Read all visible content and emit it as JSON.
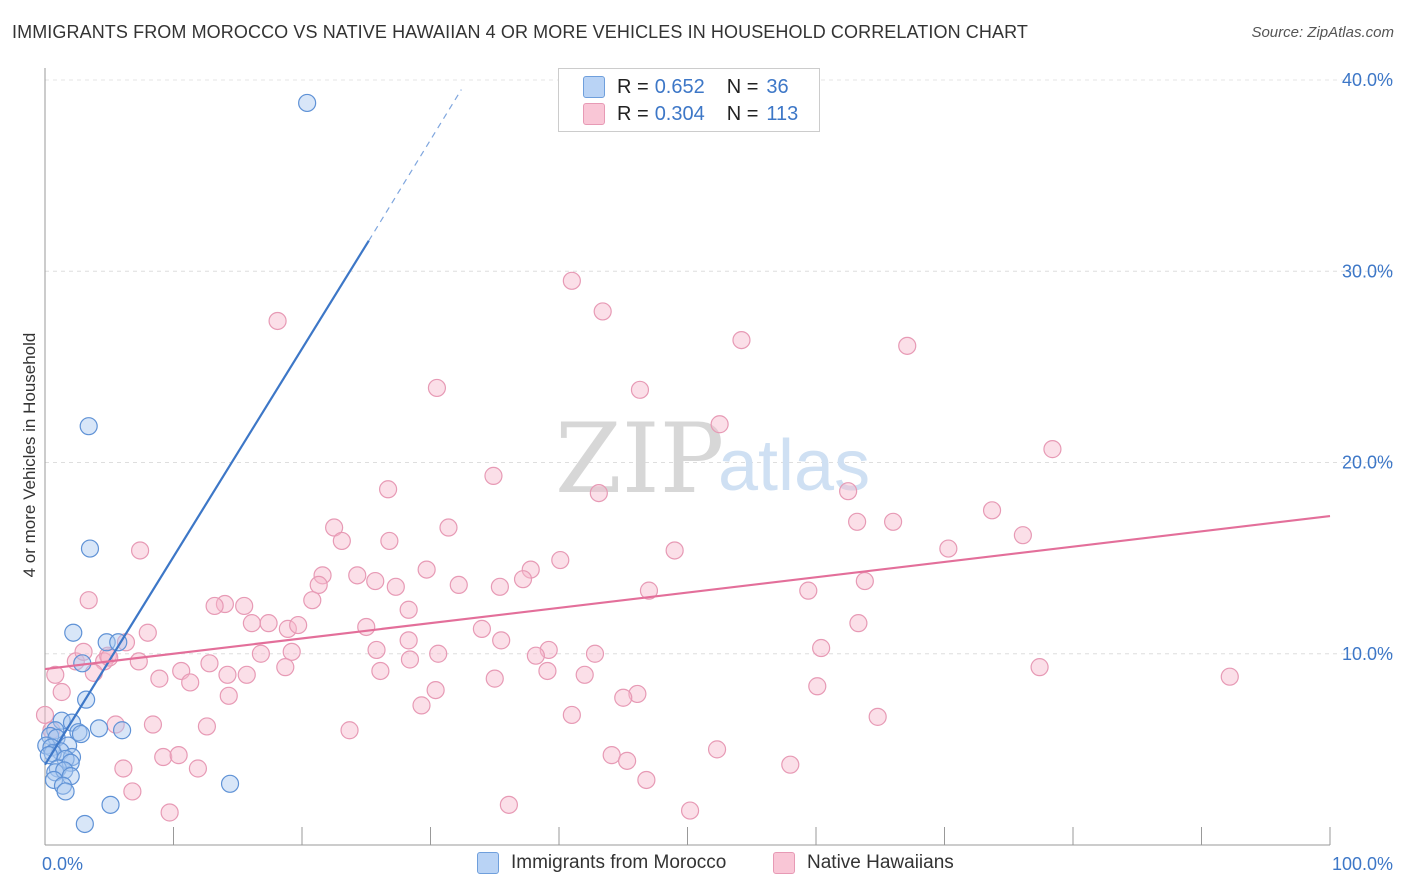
{
  "title": "IMMIGRANTS FROM MOROCCO VS NATIVE HAWAIIAN 4 OR MORE VEHICLES IN HOUSEHOLD CORRELATION CHART",
  "source": "Source: ZipAtlas.com",
  "watermark": {
    "zip": "ZIP",
    "atlas": "atlas"
  },
  "colors": {
    "blue": "#3d77c7",
    "blue_fill": "#a9c8f0",
    "pink": "#e36f9a",
    "pink_fill": "#f6b8cb",
    "grid": "#dddddd"
  },
  "legend": {
    "rows": [
      {
        "r_label": "R = ",
        "r_value": "0.652",
        "n_label": "N = ",
        "n_value": "36"
      },
      {
        "r_label": "R = ",
        "r_value": "0.304",
        "n_label": "N = ",
        "n_value": "113"
      }
    ]
  },
  "bottom_legend": {
    "series1": "Immigrants from Morocco",
    "series2": "Native Hawaiians"
  },
  "chart_data": {
    "type": "scatter",
    "title": "IMMIGRANTS FROM MOROCCO VS NATIVE HAWAIIAN 4 OR MORE VEHICLES IN HOUSEHOLD CORRELATION CHART",
    "xlabel": "",
    "ylabel": "4 or more Vehicles in Household",
    "xlim": [
      0,
      100
    ],
    "ylim": [
      0,
      40
    ],
    "x_tick_labels": [
      "0.0%",
      "100.0%"
    ],
    "y_ticks": [
      10,
      20,
      30,
      40
    ],
    "y_tick_labels": [
      "10.0%",
      "20.0%",
      "30.0%",
      "40.0%"
    ],
    "grid": true,
    "series": [
      {
        "name": "Immigrants from Morocco",
        "color": "#3d77c7",
        "R": 0.652,
        "N": 36,
        "trend": {
          "x0": 0,
          "y0": 4.2,
          "x1": 25.2,
          "y1": 31.6,
          "dash_to_x": 32.4,
          "dash_to_y": 39.5
        },
        "points": [
          [
            20.4,
            38.8
          ],
          [
            3.4,
            21.9
          ],
          [
            3.5,
            15.5
          ],
          [
            2.2,
            11.1
          ],
          [
            4.8,
            10.6
          ],
          [
            5.7,
            10.6
          ],
          [
            2.9,
            9.5
          ],
          [
            3.2,
            7.6
          ],
          [
            1.3,
            6.5
          ],
          [
            2.1,
            6.4
          ],
          [
            4.2,
            6.1
          ],
          [
            6.0,
            6.0
          ],
          [
            0.8,
            6.0
          ],
          [
            2.6,
            5.9
          ],
          [
            0.4,
            5.7
          ],
          [
            0.9,
            5.6
          ],
          [
            0.1,
            5.2
          ],
          [
            0.5,
            5.1
          ],
          [
            1.8,
            5.2
          ],
          [
            2.8,
            5.8
          ],
          [
            1.2,
            4.9
          ],
          [
            0.6,
            4.8
          ],
          [
            0.3,
            4.7
          ],
          [
            2.1,
            4.6
          ],
          [
            1.6,
            4.5
          ],
          [
            2.0,
            4.3
          ],
          [
            1.0,
            4.0
          ],
          [
            0.8,
            3.8
          ],
          [
            1.5,
            3.9
          ],
          [
            2.0,
            3.6
          ],
          [
            0.7,
            3.4
          ],
          [
            1.4,
            3.1
          ],
          [
            1.6,
            2.8
          ],
          [
            14.4,
            3.2
          ],
          [
            5.1,
            2.1
          ],
          [
            3.1,
            1.1
          ]
        ]
      },
      {
        "name": "Native Hawaiians",
        "color": "#e36f9a",
        "R": 0.304,
        "N": 113,
        "trend": {
          "x0": 0,
          "y0": 9.2,
          "x1": 100,
          "y1": 17.2
        },
        "points": [
          [
            41.0,
            29.5
          ],
          [
            43.4,
            27.9
          ],
          [
            18.1,
            27.4
          ],
          [
            54.2,
            26.4
          ],
          [
            67.1,
            26.1
          ],
          [
            30.5,
            23.9
          ],
          [
            46.3,
            23.8
          ],
          [
            52.5,
            22.0
          ],
          [
            78.4,
            20.7
          ],
          [
            34.9,
            19.3
          ],
          [
            26.7,
            18.6
          ],
          [
            43.1,
            18.4
          ],
          [
            62.5,
            18.5
          ],
          [
            73.7,
            17.5
          ],
          [
            63.2,
            16.9
          ],
          [
            66.0,
            16.9
          ],
          [
            22.5,
            16.6
          ],
          [
            31.4,
            16.6
          ],
          [
            76.1,
            16.2
          ],
          [
            23.1,
            15.9
          ],
          [
            26.8,
            15.9
          ],
          [
            7.4,
            15.4
          ],
          [
            49.0,
            15.4
          ],
          [
            70.3,
            15.5
          ],
          [
            40.1,
            14.9
          ],
          [
            37.8,
            14.4
          ],
          [
            29.7,
            14.4
          ],
          [
            24.3,
            14.1
          ],
          [
            21.6,
            14.1
          ],
          [
            37.2,
            13.9
          ],
          [
            25.7,
            13.8
          ],
          [
            63.8,
            13.8
          ],
          [
            21.3,
            13.6
          ],
          [
            32.2,
            13.6
          ],
          [
            35.4,
            13.5
          ],
          [
            27.3,
            13.5
          ],
          [
            47.0,
            13.3
          ],
          [
            59.4,
            13.3
          ],
          [
            3.4,
            12.8
          ],
          [
            20.8,
            12.8
          ],
          [
            14.0,
            12.6
          ],
          [
            13.2,
            12.5
          ],
          [
            15.5,
            12.5
          ],
          [
            28.3,
            12.3
          ],
          [
            16.1,
            11.6
          ],
          [
            17.4,
            11.6
          ],
          [
            25.0,
            11.4
          ],
          [
            8.0,
            11.1
          ],
          [
            63.3,
            11.6
          ],
          [
            18.9,
            11.3
          ],
          [
            19.7,
            11.5
          ],
          [
            34.0,
            11.3
          ],
          [
            25.8,
            10.2
          ],
          [
            35.5,
            10.7
          ],
          [
            6.3,
            10.6
          ],
          [
            28.3,
            10.7
          ],
          [
            16.8,
            10.0
          ],
          [
            19.2,
            10.1
          ],
          [
            30.6,
            10.0
          ],
          [
            39.2,
            10.2
          ],
          [
            42.8,
            10.0
          ],
          [
            38.2,
            9.9
          ],
          [
            60.4,
            10.3
          ],
          [
            4.9,
            9.9
          ],
          [
            2.4,
            9.6
          ],
          [
            3.0,
            10.1
          ],
          [
            4.6,
            9.6
          ],
          [
            5.0,
            9.8
          ],
          [
            7.3,
            9.6
          ],
          [
            12.8,
            9.5
          ],
          [
            18.7,
            9.3
          ],
          [
            28.4,
            9.7
          ],
          [
            10.6,
            9.1
          ],
          [
            0.8,
            8.9
          ],
          [
            3.8,
            9.0
          ],
          [
            15.7,
            8.9
          ],
          [
            14.2,
            8.9
          ],
          [
            26.1,
            9.1
          ],
          [
            39.1,
            9.1
          ],
          [
            42.0,
            8.9
          ],
          [
            35.0,
            8.7
          ],
          [
            8.9,
            8.7
          ],
          [
            11.3,
            8.5
          ],
          [
            60.1,
            8.3
          ],
          [
            77.4,
            9.3
          ],
          [
            92.2,
            8.8
          ],
          [
            1.3,
            8.0
          ],
          [
            14.3,
            7.8
          ],
          [
            30.4,
            8.1
          ],
          [
            46.1,
            7.9
          ],
          [
            45.0,
            7.7
          ],
          [
            29.3,
            7.3
          ],
          [
            0.0,
            6.8
          ],
          [
            8.4,
            6.3
          ],
          [
            12.6,
            6.2
          ],
          [
            23.7,
            6.0
          ],
          [
            41.0,
            6.8
          ],
          [
            64.8,
            6.7
          ],
          [
            5.5,
            6.3
          ],
          [
            52.3,
            5.0
          ],
          [
            44.1,
            4.7
          ],
          [
            9.2,
            4.6
          ],
          [
            10.4,
            4.7
          ],
          [
            45.3,
            4.4
          ],
          [
            58.0,
            4.2
          ],
          [
            6.1,
            4.0
          ],
          [
            11.9,
            4.0
          ],
          [
            46.8,
            3.4
          ],
          [
            6.8,
            2.8
          ],
          [
            36.1,
            2.1
          ],
          [
            9.7,
            1.7
          ],
          [
            50.2,
            1.8
          ],
          [
            0.5,
            6.0
          ]
        ]
      }
    ]
  }
}
